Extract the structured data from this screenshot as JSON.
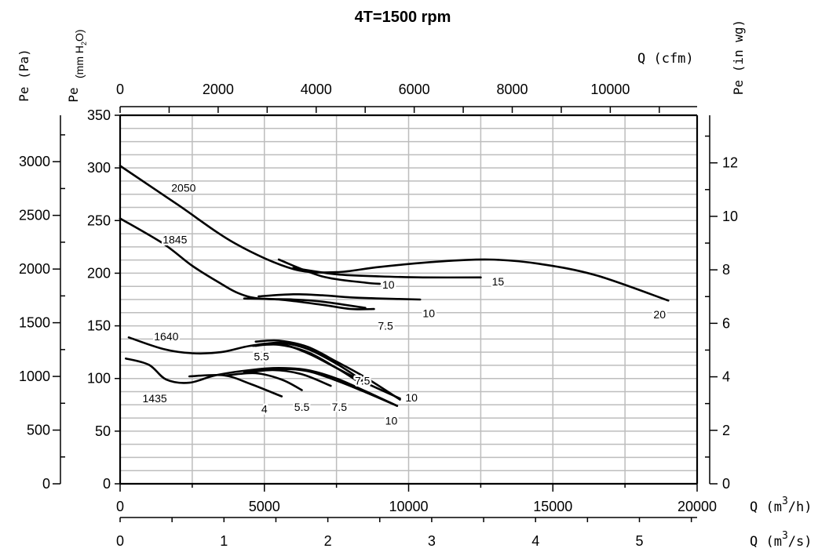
{
  "chart_data": {
    "type": "line",
    "title": "4T=1500 rpm",
    "grid": true,
    "axes": {
      "pe_pa": {
        "label": "Pe  (Pa)",
        "ticks": [
          "0",
          "500",
          "1000",
          "1500",
          "2000",
          "2500",
          "3000"
        ]
      },
      "pe_mmh2o": {
        "label_main": "Pe",
        "label_unit": "(mm H",
        "label_sub": "2",
        "label_end": "O)",
        "ticks": [
          "0",
          "50",
          "100",
          "150",
          "200",
          "250",
          "300",
          "350"
        ],
        "ylim": [
          0,
          350
        ]
      },
      "pe_inwg": {
        "label": "Pe  (in wg)",
        "ticks": [
          "0",
          "2",
          "4",
          "6",
          "8",
          "10",
          "12"
        ]
      },
      "q_cfm": {
        "label": "Q  (cfm)",
        "ticks": [
          "0",
          "2000",
          "4000",
          "6000",
          "8000",
          "10000"
        ]
      },
      "q_m3h": {
        "label_pre": "Q  (m",
        "label_sup": "3",
        "label_post": "/h)",
        "ticks": [
          "0",
          "5000",
          "10000",
          "15000",
          "20000"
        ],
        "xlim": [
          0,
          20000
        ]
      },
      "q_m3s": {
        "label_pre": "Q  (m",
        "label_sup": "3",
        "label_post": "/s)",
        "ticks": [
          "0",
          "1",
          "2",
          "3",
          "4",
          "5"
        ]
      }
    },
    "x_unit": "m3/h",
    "y_unit": "mm H2O",
    "series": [
      {
        "name": "2050",
        "points": [
          [
            0,
            302
          ],
          [
            2000,
            265
          ],
          [
            4000,
            228
          ],
          [
            6000,
            204
          ],
          [
            7500,
            201
          ],
          [
            9000,
            206
          ],
          [
            11000,
            211
          ],
          [
            12800,
            213
          ],
          [
            14500,
            209
          ],
          [
            16500,
            198
          ],
          [
            19000,
            174
          ]
        ]
      },
      {
        "name": "15",
        "points": [
          [
            6000,
            205
          ],
          [
            7500,
            199
          ],
          [
            9000,
            197
          ],
          [
            10500,
            196
          ],
          [
            12500,
            196
          ]
        ]
      },
      {
        "name": "10",
        "points": [
          [
            5500,
            213
          ],
          [
            7000,
            197
          ],
          [
            8500,
            191
          ],
          [
            9000,
            190
          ]
        ]
      },
      {
        "name": "1845",
        "points": [
          [
            0,
            252
          ],
          [
            1500,
            228
          ],
          [
            2500,
            207
          ],
          [
            3500,
            190
          ],
          [
            4100,
            181
          ],
          [
            4800,
            176
          ],
          [
            6000,
            175
          ],
          [
            7000,
            173
          ],
          [
            8500,
            167
          ]
        ]
      },
      {
        "name": "10",
        "points": [
          [
            4800,
            178
          ],
          [
            6000,
            180
          ],
          [
            7000,
            179
          ],
          [
            8000,
            177
          ],
          [
            9000,
            176
          ],
          [
            10400,
            175
          ]
        ]
      },
      {
        "name": "7.5",
        "points": [
          [
            4300,
            176
          ],
          [
            5500,
            175
          ],
          [
            7000,
            170
          ],
          [
            8000,
            166
          ],
          [
            8800,
            166
          ]
        ]
      },
      {
        "name": "1640",
        "points": [
          [
            300,
            139
          ],
          [
            1500,
            128
          ],
          [
            2500,
            124
          ],
          [
            3500,
            125
          ],
          [
            4500,
            131
          ],
          [
            5500,
            133
          ],
          [
            6500,
            124
          ],
          [
            7500,
            110
          ],
          [
            8500,
            96
          ],
          [
            9700,
            81
          ]
        ]
      },
      {
        "name": "10",
        "points": [
          [
            4700,
            135
          ],
          [
            5500,
            136
          ],
          [
            6500,
            130
          ],
          [
            7500,
            116
          ],
          [
            8500,
            101
          ],
          [
            9700,
            80
          ]
        ]
      },
      {
        "name": "7.5",
        "points": [
          [
            4700,
            131
          ],
          [
            5500,
            134
          ],
          [
            6500,
            128
          ],
          [
            7500,
            114
          ],
          [
            8400,
            98
          ]
        ]
      },
      {
        "name": "5.5",
        "points": [
          [
            4600,
            131
          ],
          [
            5500,
            132
          ],
          [
            6500,
            125
          ],
          [
            7500,
            110
          ],
          [
            8200,
            98
          ]
        ]
      },
      {
        "name": "1435",
        "points": [
          [
            200,
            119
          ],
          [
            1000,
            113
          ],
          [
            1600,
            99
          ],
          [
            2400,
            96
          ],
          [
            3300,
            103
          ],
          [
            4500,
            108
          ],
          [
            5500,
            110
          ],
          [
            6500,
            108
          ],
          [
            7500,
            100
          ],
          [
            8500,
            88
          ],
          [
            9600,
            74
          ]
        ]
      },
      {
        "name": "10",
        "points": [
          [
            4300,
            106
          ],
          [
            5500,
            109
          ],
          [
            6500,
            107
          ],
          [
            7500,
            98
          ],
          [
            8500,
            87
          ],
          [
            9600,
            74
          ]
        ]
      },
      {
        "name": "7.5",
        "points": [
          [
            4300,
            105
          ],
          [
            5300,
            108
          ],
          [
            6300,
            104
          ],
          [
            7300,
            93
          ]
        ]
      },
      {
        "name": "5.5",
        "points": [
          [
            3700,
            103
          ],
          [
            4700,
            105
          ],
          [
            5600,
            99
          ],
          [
            6300,
            89
          ]
        ]
      },
      {
        "name": "4",
        "points": [
          [
            2400,
            102
          ],
          [
            3600,
            103
          ],
          [
            4500,
            95
          ],
          [
            5600,
            83
          ]
        ]
      }
    ],
    "annotations": [
      {
        "text": "2050",
        "x": 2200,
        "y": 281
      },
      {
        "text": "1845",
        "x": 1900,
        "y": 232
      },
      {
        "text": "1640",
        "x": 1600,
        "y": 140
      },
      {
        "text": "1435",
        "x": 1200,
        "y": 81
      },
      {
        "text": "20",
        "x": 18700,
        "y": 161
      },
      {
        "text": "15",
        "x": 13100,
        "y": 192
      },
      {
        "text": "10",
        "x": 9300,
        "y": 189
      },
      {
        "text": "10",
        "x": 10700,
        "y": 162
      },
      {
        "text": "7.5",
        "x": 9200,
        "y": 150
      },
      {
        "text": "5.5",
        "x": 4900,
        "y": 121
      },
      {
        "text": "7.5",
        "x": 8400,
        "y": 98
      },
      {
        "text": "10",
        "x": 10100,
        "y": 82
      },
      {
        "text": "7.5",
        "x": 7600,
        "y": 73
      },
      {
        "text": "5.5",
        "x": 6300,
        "y": 73
      },
      {
        "text": "4",
        "x": 5000,
        "y": 71
      },
      {
        "text": "10",
        "x": 9400,
        "y": 60
      }
    ]
  }
}
